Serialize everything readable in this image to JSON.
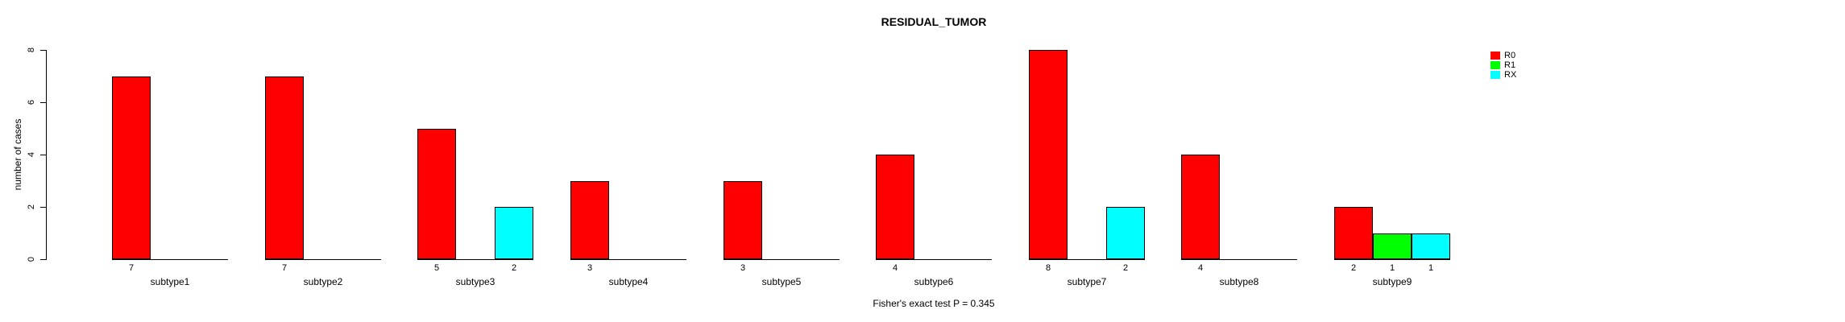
{
  "chart_data": {
    "type": "bar",
    "title": "RESIDUAL_TUMOR",
    "ylabel": "number of cases",
    "annotation": "Fisher's exact test P = 0.345",
    "ylim": [
      0,
      8
    ],
    "yticks": [
      0,
      2,
      4,
      6,
      8
    ],
    "grid": false,
    "background": "#ffffff",
    "legend_position": "top-right",
    "bar_value_labels": true,
    "categories": [
      "subtype1",
      "subtype2",
      "subtype3",
      "subtype4",
      "subtype5",
      "subtype6",
      "subtype7",
      "subtype8",
      "subtype9"
    ],
    "series": [
      {
        "name": "R0",
        "color": "#ff0000",
        "values": [
          7,
          7,
          5,
          3,
          3,
          4,
          8,
          4,
          2
        ]
      },
      {
        "name": "R1",
        "color": "#00ff00",
        "values": [
          0,
          0,
          0,
          0,
          0,
          0,
          0,
          0,
          1
        ]
      },
      {
        "name": "RX",
        "color": "#00ffff",
        "values": [
          0,
          0,
          2,
          0,
          0,
          0,
          2,
          0,
          1
        ]
      }
    ]
  }
}
